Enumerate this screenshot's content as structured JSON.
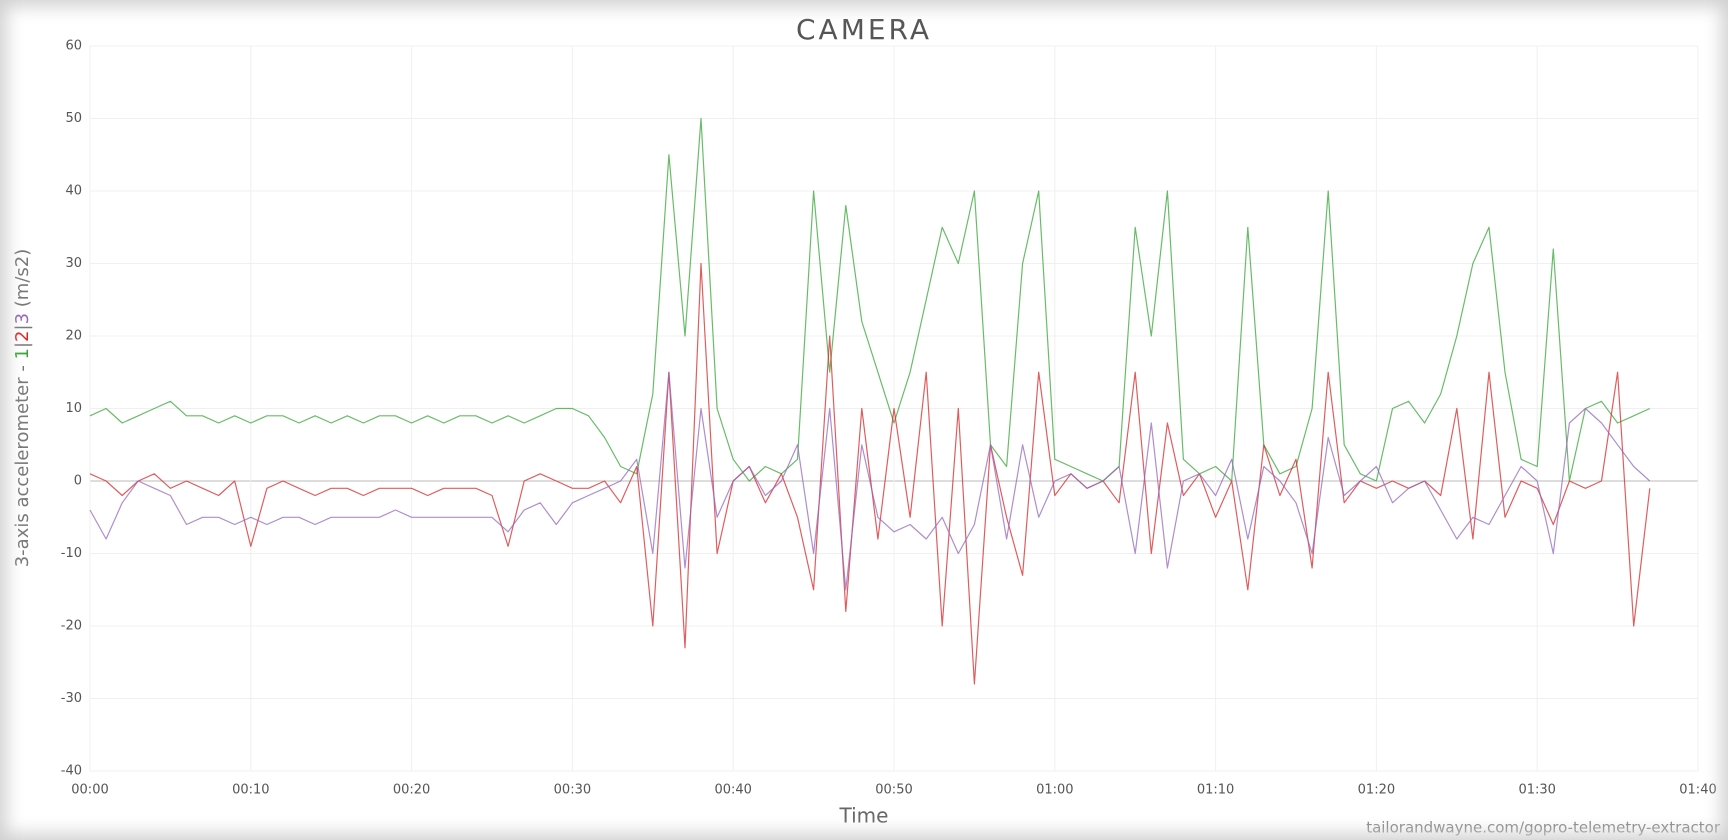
{
  "chart_data": {
    "type": "line",
    "title": "CAMERA",
    "x_label": "Time",
    "y_label": "3-axis accelerometer -",
    "y_label_separator": "|",
    "y_label_unit": "(m/s2)",
    "source": "tailorandwayne.com/gopro-telemetry-extractor",
    "x": [
      0,
      1,
      2,
      3,
      4,
      5,
      6,
      7,
      8,
      9,
      10,
      11,
      12,
      13,
      14,
      15,
      16,
      17,
      18,
      19,
      20,
      21,
      22,
      23,
      24,
      25,
      26,
      27,
      28,
      29,
      30,
      31,
      32,
      33,
      34,
      35,
      36,
      37,
      38,
      39,
      40,
      41,
      42,
      43,
      44,
      45,
      46,
      47,
      48,
      49,
      50,
      51,
      52,
      53,
      54,
      55,
      56,
      57,
      58,
      59,
      60,
      61,
      62,
      63,
      64,
      65,
      66,
      67,
      68,
      69,
      70,
      71,
      72,
      73,
      74,
      75,
      76,
      77,
      78,
      79,
      80,
      81,
      82,
      83,
      84,
      85,
      86,
      87,
      88,
      89,
      90,
      91,
      92,
      93,
      94,
      95,
      96,
      97
    ],
    "series": [
      {
        "name": "1",
        "color": "#35a535",
        "values": [
          9,
          10,
          8,
          9,
          10,
          11,
          9,
          9,
          8,
          9,
          8,
          9,
          9,
          8,
          9,
          8,
          9,
          8,
          9,
          9,
          8,
          9,
          8,
          9,
          9,
          8,
          9,
          8,
          9,
          10,
          10,
          9,
          6,
          2,
          1,
          12,
          45,
          20,
          50,
          10,
          3,
          0,
          2,
          1,
          3,
          40,
          15,
          38,
          22,
          15,
          8,
          15,
          25,
          35,
          30,
          40,
          5,
          2,
          30,
          40,
          3,
          2,
          1,
          0,
          2,
          35,
          20,
          40,
          3,
          1,
          2,
          0,
          35,
          5,
          1,
          2,
          10,
          40,
          5,
          1,
          0,
          10,
          11,
          8,
          12,
          20,
          30,
          35,
          15,
          3,
          2,
          32,
          0,
          10,
          11,
          8,
          9,
          10
        ]
      },
      {
        "name": "2",
        "color": "#d62728",
        "values": [
          1,
          0,
          -2,
          0,
          1,
          -1,
          0,
          -1,
          -2,
          0,
          -9,
          -1,
          0,
          -1,
          -2,
          -1,
          -1,
          -2,
          -1,
          -1,
          -1,
          -2,
          -1,
          -1,
          -1,
          -2,
          -9,
          0,
          1,
          0,
          -1,
          -1,
          0,
          -3,
          2,
          -20,
          15,
          -23,
          30,
          -10,
          0,
          2,
          -3,
          1,
          -5,
          -15,
          20,
          -18,
          10,
          -8,
          10,
          -5,
          15,
          -20,
          10,
          -28,
          5,
          -5,
          -13,
          15,
          -2,
          1,
          -1,
          0,
          -3,
          15,
          -10,
          8,
          -2,
          1,
          -5,
          0,
          -15,
          5,
          -2,
          3,
          -12,
          15,
          -3,
          0,
          -1,
          0,
          -1,
          0,
          -2,
          10,
          -8,
          15,
          -5,
          0,
          -1,
          -6,
          0,
          -1,
          0,
          15,
          -20,
          -1
        ]
      },
      {
        "name": "3",
        "color": "#9467bd",
        "values": [
          -4,
          -8,
          -3,
          0,
          -1,
          -2,
          -6,
          -5,
          -5,
          -6,
          -5,
          -6,
          -5,
          -5,
          -6,
          -5,
          -5,
          -5,
          -5,
          -4,
          -5,
          -5,
          -5,
          -5,
          -5,
          -5,
          -7,
          -4,
          -3,
          -6,
          -3,
          -2,
          -1,
          0,
          3,
          -10,
          15,
          -12,
          10,
          -5,
          0,
          2,
          -2,
          0,
          5,
          -10,
          10,
          -15,
          5,
          -5,
          -7,
          -6,
          -8,
          -5,
          -10,
          -6,
          5,
          -8,
          5,
          -5,
          0,
          1,
          -1,
          0,
          2,
          -10,
          8,
          -12,
          0,
          1,
          -2,
          3,
          -8,
          2,
          0,
          -3,
          -10,
          6,
          -2,
          0,
          2,
          -3,
          -1,
          0,
          -4,
          -8,
          -5,
          -6,
          -2,
          2,
          0,
          -10,
          8,
          10,
          8,
          5,
          2,
          0
        ]
      }
    ],
    "xlim": [
      0,
      100
    ],
    "xticks": [
      {
        "value": 0,
        "label": "00:00"
      },
      {
        "value": 10,
        "label": "00:10"
      },
      {
        "value": 20,
        "label": "00:20"
      },
      {
        "value": 30,
        "label": "00:30"
      },
      {
        "value": 40,
        "label": "00:40"
      },
      {
        "value": 50,
        "label": "00:50"
      },
      {
        "value": 60,
        "label": "01:00"
      },
      {
        "value": 70,
        "label": "01:10"
      },
      {
        "value": 80,
        "label": "01:20"
      },
      {
        "value": 90,
        "label": "01:30"
      },
      {
        "value": 100,
        "label": "01:40"
      }
    ],
    "ylim": [
      -40,
      60
    ],
    "yticks": [
      -40,
      -30,
      -20,
      -10,
      0,
      10,
      20,
      30,
      40,
      50,
      60
    ],
    "grid": true
  }
}
